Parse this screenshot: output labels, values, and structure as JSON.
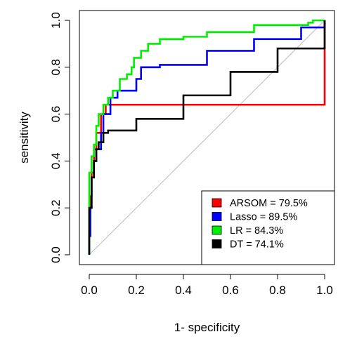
{
  "chart_data": {
    "type": "line",
    "title": "",
    "xlabel": "1- specificity",
    "ylabel": "sensitivity",
    "xlim": [
      0,
      1
    ],
    "ylim": [
      0,
      1
    ],
    "x_ticks": [
      "0.0",
      "0.2",
      "0.4",
      "0.6",
      "0.8",
      "1.0"
    ],
    "y_ticks": [
      "0.0",
      "0.2",
      "0.4",
      "0.6",
      "0.8",
      "1.0"
    ],
    "grid": false,
    "diagonal_reference": true,
    "legend_position": "bottom-right",
    "series": [
      {
        "name": "ARSOM = 79.5%",
        "color": "#ff0000",
        "points": [
          [
            0,
            0
          ],
          [
            0,
            0.1
          ],
          [
            0.005,
            0.25
          ],
          [
            0.01,
            0.35
          ],
          [
            0.02,
            0.45
          ],
          [
            0.03,
            0.52
          ],
          [
            0.05,
            0.6
          ],
          [
            0.07,
            0.64
          ],
          [
            1,
            1
          ]
        ]
      },
      {
        "name": "Lasso = 89.5%",
        "color": "#0000ff",
        "points": [
          [
            0,
            0
          ],
          [
            0,
            0.08
          ],
          [
            0.005,
            0.2
          ],
          [
            0.01,
            0.33
          ],
          [
            0.02,
            0.4
          ],
          [
            0.03,
            0.45
          ],
          [
            0.05,
            0.52
          ],
          [
            0.06,
            0.6
          ],
          [
            0.09,
            0.67
          ],
          [
            0.12,
            0.7
          ],
          [
            0.2,
            0.75
          ],
          [
            0.22,
            0.8
          ],
          [
            0.3,
            0.81
          ],
          [
            0.5,
            0.87
          ],
          [
            0.7,
            0.92
          ],
          [
            0.9,
            0.97
          ],
          [
            1,
            1
          ]
        ]
      },
      {
        "name": "LR = 84.3%",
        "color": "#00ee00",
        "points": [
          [
            0,
            0
          ],
          [
            0,
            0.35
          ],
          [
            0.01,
            0.42
          ],
          [
            0.02,
            0.47
          ],
          [
            0.03,
            0.55
          ],
          [
            0.04,
            0.6
          ],
          [
            0.06,
            0.64
          ],
          [
            0.08,
            0.67
          ],
          [
            0.1,
            0.7
          ],
          [
            0.13,
            0.75
          ],
          [
            0.16,
            0.77
          ],
          [
            0.18,
            0.8
          ],
          [
            0.19,
            0.84
          ],
          [
            0.22,
            0.87
          ],
          [
            0.25,
            0.9
          ],
          [
            0.3,
            0.92
          ],
          [
            0.4,
            0.93
          ],
          [
            0.5,
            0.95
          ],
          [
            0.7,
            0.98
          ],
          [
            0.93,
            0.99
          ],
          [
            0.95,
            1
          ],
          [
            1,
            1
          ]
        ]
      },
      {
        "name": "DT = 74.1%",
        "color": "#000000",
        "points": [
          [
            0,
            0
          ],
          [
            0,
            0.2
          ],
          [
            0.01,
            0.33
          ],
          [
            0.02,
            0.4
          ],
          [
            0.03,
            0.45
          ],
          [
            0.04,
            0.48
          ],
          [
            0.06,
            0.52
          ],
          [
            0.08,
            0.53
          ],
          [
            0.2,
            0.58
          ],
          [
            0.4,
            0.68
          ],
          [
            0.6,
            0.78
          ],
          [
            0.8,
            0.88
          ],
          [
            1,
            1
          ]
        ]
      }
    ]
  }
}
